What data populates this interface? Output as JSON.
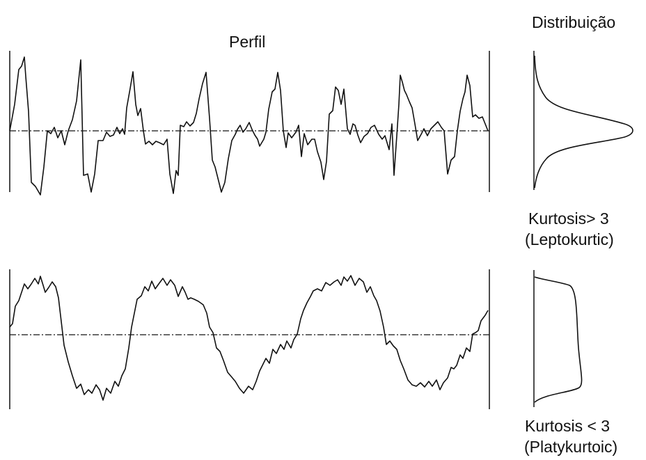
{
  "labels": {
    "profile_title": "Perfil",
    "distribution_title": "Distribuição",
    "lepto_line1": "Kurtosis> 3",
    "lepto_line2": "(Leptokurtic)",
    "platy_line1": "Kurtosis < 3",
    "platy_line2": "(Platykurtoic)"
  },
  "colors": {
    "stroke": "#111111",
    "background": "#ffffff"
  }
}
